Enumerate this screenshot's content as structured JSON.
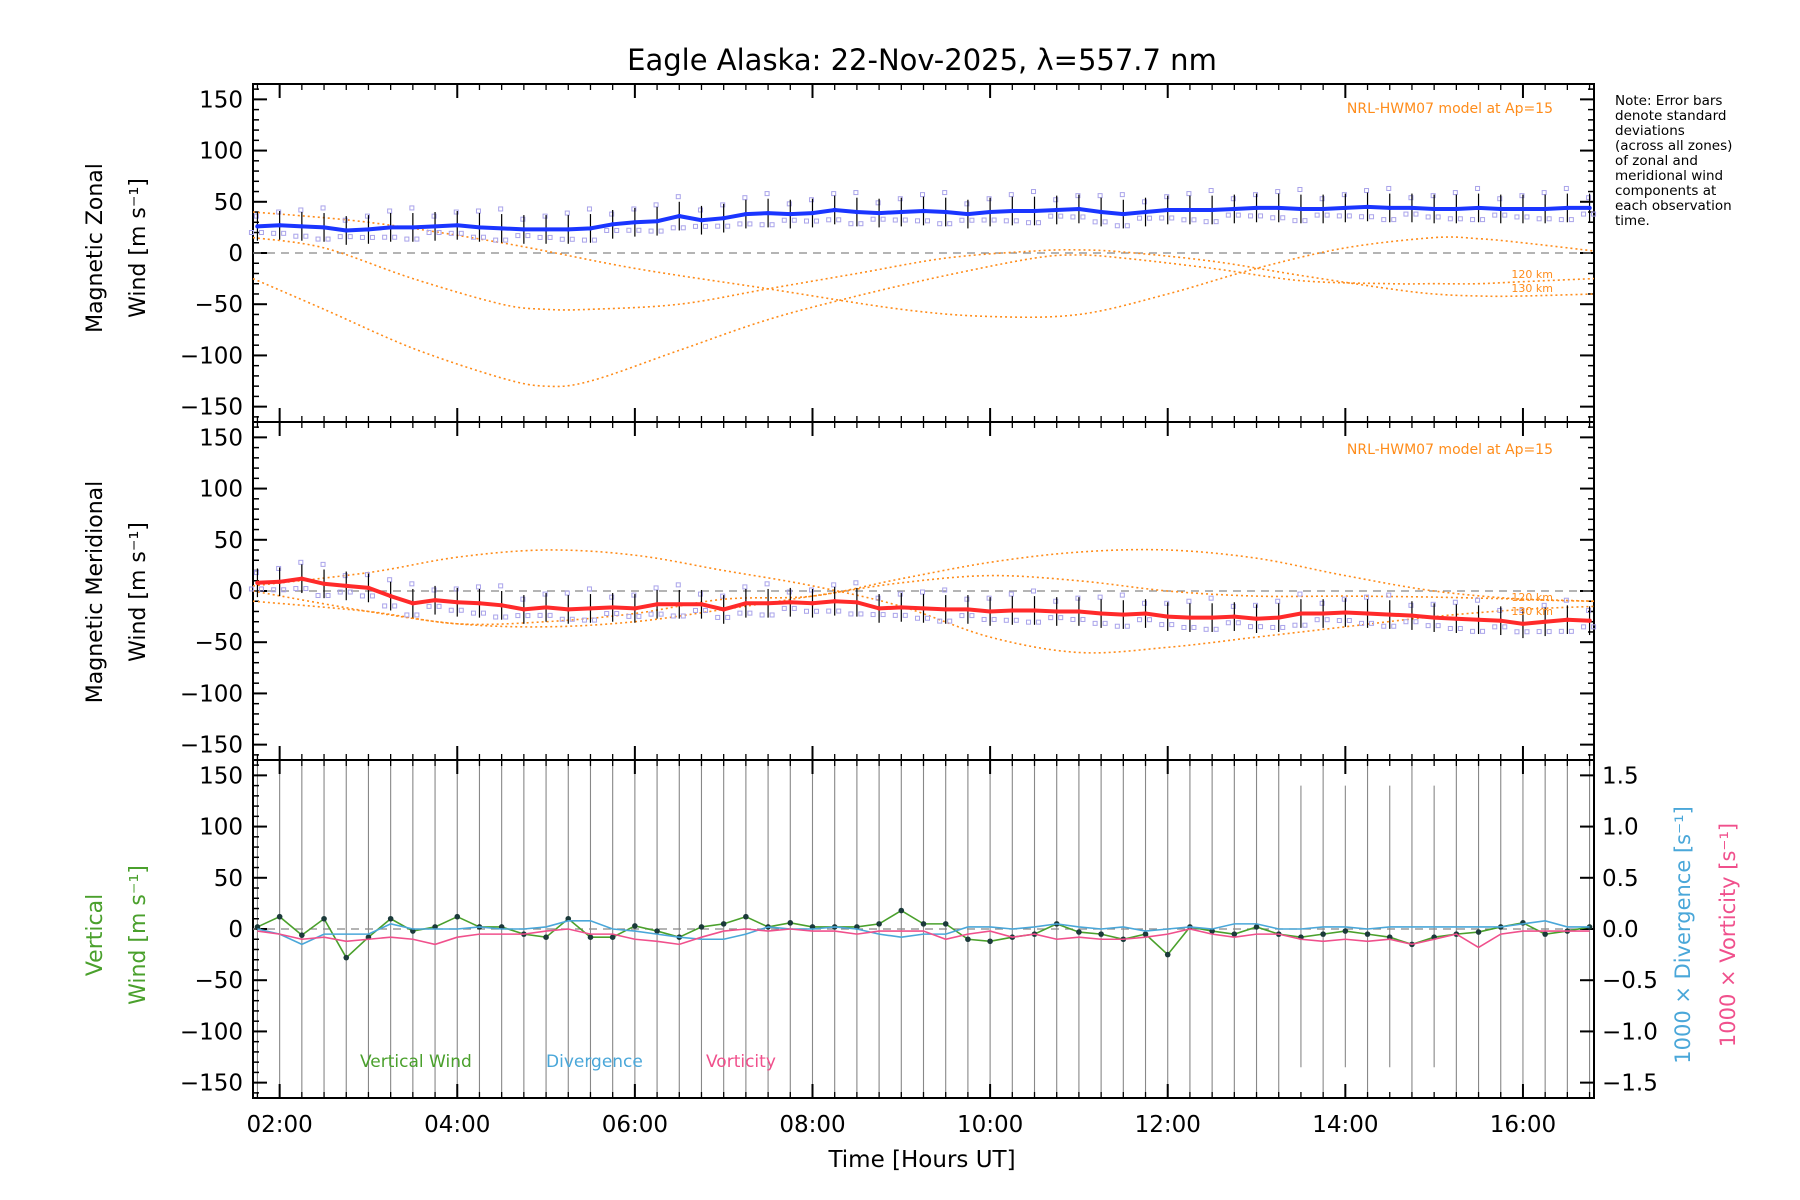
{
  "chart_data": [
    {
      "type": "line",
      "title": "Eagle Alaska: 22-Nov-2025, λ=557.7 nm",
      "panel": "zonal",
      "ylabel_line1": "Magnetic Zonal",
      "ylabel_line2": "Wind [m s⁻¹]",
      "ylim": [
        -165,
        165
      ],
      "yticks": [
        -150,
        -100,
        -50,
        0,
        50,
        100,
        150
      ],
      "xlim": [
        1.7,
        16.8
      ],
      "model_label": "NRL-HWM07 model at Ap=15",
      "model_heights": [
        "120 km",
        "130 km"
      ],
      "series": [
        {
          "name": "Zonal wind",
          "color": "#1a35ff",
          "x": [
            1.75,
            2.0,
            2.25,
            2.5,
            2.75,
            3.0,
            3.25,
            3.5,
            3.75,
            4.0,
            4.25,
            4.5,
            4.75,
            5.0,
            5.25,
            5.5,
            5.75,
            6.0,
            6.25,
            6.5,
            6.75,
            7.0,
            7.25,
            7.5,
            7.75,
            8.0,
            8.25,
            8.5,
            8.75,
            9.0,
            9.25,
            9.5,
            9.75,
            10.0,
            10.25,
            10.5,
            10.75,
            11.0,
            11.25,
            11.5,
            11.75,
            12.0,
            12.25,
            12.5,
            12.75,
            13.0,
            13.25,
            13.5,
            13.75,
            14.0,
            14.25,
            14.5,
            14.75,
            15.0,
            15.25,
            15.5,
            15.75,
            16.0,
            16.25,
            16.5,
            16.75
          ],
          "values": [
            26,
            27,
            26,
            25,
            22,
            23,
            25,
            25,
            26,
            27,
            25,
            24,
            23,
            23,
            23,
            24,
            28,
            30,
            31,
            36,
            32,
            34,
            38,
            39,
            38,
            39,
            42,
            40,
            39,
            40,
            41,
            40,
            38,
            40,
            41,
            41,
            42,
            43,
            40,
            38,
            40,
            42,
            42,
            42,
            43,
            44,
            44,
            43,
            43,
            44,
            45,
            44,
            44,
            43,
            43,
            44,
            43,
            43,
            43,
            44,
            44
          ]
        },
        {
          "name": "HWM07 120 km",
          "color": "#ff8c1a",
          "x": [
            1.7,
            2.5,
            3.5,
            4.5,
            5.0,
            5.5,
            6.5,
            7.5,
            8.5,
            9.5,
            10.5,
            11.0,
            11.5,
            12.5,
            13.5,
            14.5,
            15.0,
            15.5,
            16.0,
            16.8
          ],
          "values": [
            -25,
            -55,
            -93,
            -122,
            -130,
            -125,
            -95,
            -65,
            -42,
            -22,
            -5,
            -2,
            -5,
            -15,
            -27,
            -30,
            -30,
            -30,
            -28,
            -25
          ]
        },
        {
          "name": "HWM07 130 km",
          "color": "#ff8c1a",
          "x": [
            1.7,
            2.5,
            3.5,
            4.5,
            5.0,
            5.5,
            6.5,
            7.5,
            8.5,
            9.5,
            10.5,
            11.0,
            11.5,
            12.5,
            13.5,
            14.5,
            15.0,
            15.5,
            16.0,
            16.8
          ],
          "values": [
            15,
            5,
            -25,
            -50,
            -55,
            -55,
            -50,
            -35,
            -20,
            -5,
            2,
            3,
            1,
            -8,
            -22,
            -35,
            -40,
            -42,
            -42,
            -40
          ]
        },
        {
          "name": "HWM07 lower",
          "color": "#ff8c1a",
          "x": [
            1.7,
            3.0,
            4.5,
            6.0,
            7.5,
            9.0,
            10.0,
            11.0,
            12.0,
            13.0,
            14.0,
            15.0,
            15.5,
            16.0,
            16.8
          ],
          "values": [
            40,
            30,
            10,
            -15,
            -35,
            -55,
            -62,
            -60,
            -40,
            -15,
            5,
            15,
            14,
            10,
            2
          ]
        }
      ]
    },
    {
      "type": "line",
      "panel": "meridional",
      "ylabel_line1": "Magnetic Meridional",
      "ylabel_line2": "Wind [m s⁻¹]",
      "ylim": [
        -165,
        165
      ],
      "yticks": [
        -150,
        -100,
        -50,
        0,
        50,
        100,
        150
      ],
      "model_label": "NRL-HWM07 model at Ap=15",
      "model_heights": [
        "120 km",
        "130 km"
      ],
      "series": [
        {
          "name": "Meridional wind",
          "color": "#ff2a2a",
          "x": [
            1.75,
            2.0,
            2.25,
            2.5,
            2.75,
            3.0,
            3.25,
            3.5,
            3.75,
            4.0,
            4.25,
            4.5,
            4.75,
            5.0,
            5.25,
            5.5,
            5.75,
            6.0,
            6.25,
            6.5,
            6.75,
            7.0,
            7.25,
            7.5,
            7.75,
            8.0,
            8.25,
            8.5,
            8.75,
            9.0,
            9.25,
            9.5,
            9.75,
            10.0,
            10.25,
            10.5,
            10.75,
            11.0,
            11.25,
            11.5,
            11.75,
            12.0,
            12.25,
            12.5,
            12.75,
            13.0,
            13.25,
            13.5,
            13.75,
            14.0,
            14.25,
            14.5,
            14.75,
            15.0,
            15.25,
            15.5,
            15.75,
            16.0,
            16.25,
            16.5,
            16.75
          ],
          "values": [
            8,
            9,
            12,
            7,
            5,
            3,
            -5,
            -12,
            -9,
            -11,
            -12,
            -14,
            -18,
            -16,
            -18,
            -17,
            -16,
            -17,
            -13,
            -13,
            -13,
            -18,
            -12,
            -12,
            -11,
            -12,
            -10,
            -11,
            -17,
            -16,
            -17,
            -18,
            -18,
            -20,
            -19,
            -19,
            -20,
            -20,
            -22,
            -23,
            -22,
            -25,
            -26,
            -26,
            -25,
            -27,
            -26,
            -22,
            -22,
            -21,
            -22,
            -23,
            -24,
            -26,
            -27,
            -28,
            -29,
            -32,
            -30,
            -28,
            -29
          ]
        },
        {
          "name": "HWM07 a",
          "color": "#ff8c1a",
          "x": [
            1.7,
            3.0,
            4.0,
            5.0,
            6.0,
            7.0,
            8.0,
            9.0,
            10.0,
            11.0,
            12.0,
            13.0,
            14.0,
            15.0,
            16.0,
            16.8
          ],
          "values": [
            5,
            18,
            33,
            40,
            35,
            20,
            5,
            -15,
            -45,
            -60,
            -55,
            -45,
            -35,
            -25,
            -18,
            -15
          ]
        },
        {
          "name": "HWM07 b",
          "color": "#ff8c1a",
          "x": [
            1.7,
            3.0,
            4.0,
            5.0,
            6.0,
            7.0,
            8.0,
            9.0,
            10.0,
            11.0,
            12.0,
            13.0,
            14.0,
            15.0,
            16.0,
            16.8
          ],
          "values": [
            0,
            -20,
            -32,
            -35,
            -30,
            -18,
            -5,
            8,
            15,
            10,
            0,
            -5,
            -5,
            -6,
            -8,
            -10
          ]
        },
        {
          "name": "HWM07 c",
          "color": "#ff8c1a",
          "x": [
            1.7,
            3.0,
            4.0,
            5.0,
            6.0,
            7.0,
            8.0,
            9.0,
            10.0,
            11.0,
            12.0,
            13.0,
            14.0,
            15.0,
            16.0,
            16.8
          ],
          "values": [
            -10,
            -20,
            -32,
            -30,
            -22,
            -8,
            -5,
            12,
            28,
            38,
            40,
            32,
            15,
            0,
            -8,
            -10
          ]
        }
      ]
    },
    {
      "type": "line",
      "panel": "vertical",
      "ylabel_line1": "Vertical",
      "ylabel_line2": "Wind [m s⁻¹]",
      "ylim": [
        -165,
        165
      ],
      "yticks": [
        -150,
        -100,
        -50,
        0,
        50,
        100,
        150
      ],
      "y2label_1": "1000 × Divergence [s⁻¹]",
      "y2label_2": "1000 × Vorticity [s⁻¹]",
      "y2lim": [
        -1.5,
        1.5
      ],
      "y2ticks": [
        "1.5",
        "1.0",
        "0.5",
        "0.0",
        "−0.5",
        "−1.0",
        "−1.5"
      ],
      "legend": [
        "Vertical Wind",
        "Divergence",
        "Vorticity"
      ],
      "series": [
        {
          "name": "Vertical Wind",
          "color": "#4aa02c",
          "x": [
            1.75,
            2.0,
            2.25,
            2.5,
            2.75,
            3.0,
            3.25,
            3.5,
            3.75,
            4.0,
            4.25,
            4.5,
            4.75,
            5.0,
            5.25,
            5.5,
            5.75,
            6.0,
            6.25,
            6.5,
            6.75,
            7.0,
            7.25,
            7.5,
            7.75,
            8.0,
            8.25,
            8.5,
            8.75,
            9.0,
            9.25,
            9.5,
            9.75,
            10.0,
            10.25,
            10.5,
            10.75,
            11.0,
            11.25,
            11.5,
            11.75,
            12.0,
            12.25,
            12.5,
            12.75,
            13.0,
            13.25,
            13.5,
            13.75,
            14.0,
            14.25,
            14.5,
            14.75,
            15.0,
            15.25,
            15.5,
            15.75,
            16.0,
            16.25,
            16.5,
            16.75
          ],
          "values": [
            2,
            12,
            -6,
            10,
            -28,
            -8,
            10,
            -2,
            2,
            12,
            2,
            2,
            -5,
            -8,
            10,
            -8,
            -8,
            3,
            -2,
            -8,
            2,
            5,
            12,
            2,
            6,
            2,
            2,
            2,
            5,
            18,
            5,
            5,
            -10,
            -12,
            -8,
            -5,
            5,
            -3,
            -5,
            -10,
            -5,
            -25,
            2,
            -2,
            -5,
            2,
            -5,
            -8,
            -5,
            -2,
            -5,
            -8,
            -15,
            -8,
            -5,
            -3,
            2,
            6,
            -5,
            -2,
            2
          ]
        },
        {
          "name": "Divergence",
          "color": "#4aa7d9",
          "x": [
            1.75,
            2.0,
            2.25,
            2.5,
            2.75,
            3.0,
            3.25,
            3.5,
            3.75,
            4.0,
            4.25,
            4.5,
            4.75,
            5.0,
            5.25,
            5.5,
            5.75,
            6.0,
            6.25,
            6.5,
            6.75,
            7.0,
            7.25,
            7.5,
            7.75,
            8.0,
            8.25,
            8.5,
            8.75,
            9.0,
            9.25,
            9.5,
            9.75,
            10.0,
            10.25,
            10.5,
            10.75,
            11.0,
            11.25,
            11.5,
            11.75,
            12.0,
            12.25,
            12.5,
            12.75,
            13.0,
            13.25,
            13.5,
            13.75,
            14.0,
            14.25,
            14.5,
            14.75,
            15.0,
            15.25,
            15.5,
            15.75,
            16.0,
            16.25,
            16.5,
            16.75
          ],
          "values": [
            0.0,
            -0.05,
            -0.15,
            -0.05,
            -0.05,
            -0.05,
            0.05,
            0.0,
            0.0,
            0.0,
            0.02,
            0.0,
            0.0,
            0.02,
            0.08,
            0.08,
            0.0,
            -0.02,
            -0.05,
            -0.08,
            -0.1,
            -0.1,
            -0.05,
            0.02,
            0.0,
            0.0,
            0.02,
            0.0,
            -0.05,
            -0.08,
            -0.05,
            -0.05,
            0.02,
            0.02,
            0.0,
            0.02,
            0.05,
            0.02,
            0.0,
            0.02,
            -0.02,
            0.0,
            0.02,
            0.0,
            0.05,
            0.05,
            0.0,
            0.0,
            0.02,
            0.02,
            0.0,
            0.02,
            0.02,
            0.02,
            0.02,
            0.02,
            0.02,
            0.05,
            0.08,
            0.02,
            0.02
          ]
        },
        {
          "name": "Vorticity",
          "color": "#f0508c",
          "x": [
            1.75,
            2.0,
            2.25,
            2.5,
            2.75,
            3.0,
            3.25,
            3.5,
            3.75,
            4.0,
            4.25,
            4.5,
            4.75,
            5.0,
            5.25,
            5.5,
            5.75,
            6.0,
            6.25,
            6.5,
            6.75,
            7.0,
            7.25,
            7.5,
            7.75,
            8.0,
            8.25,
            8.5,
            8.75,
            9.0,
            9.25,
            9.5,
            9.75,
            10.0,
            10.25,
            10.5,
            10.75,
            11.0,
            11.25,
            11.5,
            11.75,
            12.0,
            12.25,
            12.5,
            12.75,
            13.0,
            13.25,
            13.5,
            13.75,
            14.0,
            14.25,
            14.5,
            14.75,
            15.0,
            15.25,
            15.5,
            15.75,
            16.0,
            16.25,
            16.5,
            16.75
          ],
          "values": [
            -0.02,
            -0.05,
            -0.1,
            -0.08,
            -0.12,
            -0.1,
            -0.08,
            -0.1,
            -0.15,
            -0.08,
            -0.05,
            -0.05,
            -0.05,
            -0.02,
            0.0,
            -0.05,
            -0.05,
            -0.1,
            -0.12,
            -0.15,
            -0.08,
            -0.02,
            0.0,
            -0.02,
            0.0,
            -0.02,
            -0.02,
            -0.05,
            -0.02,
            -0.02,
            -0.02,
            -0.1,
            -0.05,
            -0.02,
            -0.08,
            -0.05,
            -0.1,
            -0.08,
            -0.1,
            -0.1,
            -0.08,
            -0.05,
            0.0,
            -0.05,
            -0.08,
            -0.05,
            -0.05,
            -0.1,
            -0.12,
            -0.1,
            -0.12,
            -0.1,
            -0.15,
            -0.1,
            -0.05,
            -0.18,
            -0.05,
            -0.02,
            -0.02,
            -0.02,
            -0.02
          ]
        }
      ]
    }
  ],
  "axis": {
    "xlabel": "Time [Hours UT]",
    "xticks": [
      {
        "value": 2,
        "label": "02:00"
      },
      {
        "value": 4,
        "label": "04:00"
      },
      {
        "value": 6,
        "label": "06:00"
      },
      {
        "value": 8,
        "label": "08:00"
      },
      {
        "value": 10,
        "label": "10:00"
      },
      {
        "value": 12,
        "label": "12:00"
      },
      {
        "value": 14,
        "label": "14:00"
      },
      {
        "value": 16,
        "label": "16:00"
      }
    ]
  },
  "note": {
    "lines": [
      "Note: Error bars",
      "denote standard",
      "deviations",
      "(across all zones)",
      "of zonal and",
      "meridional wind",
      "components at",
      "each observation",
      "time."
    ]
  },
  "colors": {
    "zonal": "#1a35ff",
    "meridional": "#ff2a2a",
    "model": "#ff8c1a",
    "vertical": "#4aa02c",
    "divergence": "#4aa7d9",
    "vorticity": "#f0508c",
    "scatter": "#a9a3ea"
  }
}
